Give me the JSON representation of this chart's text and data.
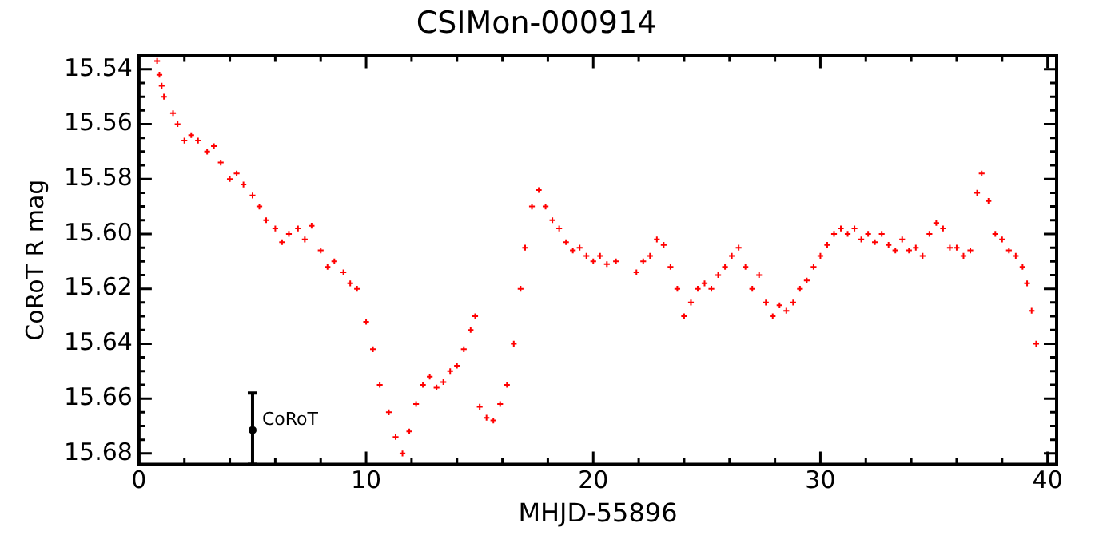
{
  "chart_data": {
    "type": "scatter",
    "title": "CSIMon-000914",
    "xlabel": "MHJD-55896",
    "ylabel": "CoRoT R mag",
    "xlim": [
      0,
      40.4
    ],
    "ylim": [
      15.684,
      15.535
    ],
    "xticks": [
      0,
      {
        "value": 2,
        "label": null
      },
      {
        "value": 4,
        "label": null
      },
      {
        "value": 6,
        "label": null
      },
      {
        "value": 8,
        "label": null
      },
      10,
      {
        "value": 12,
        "label": null
      },
      {
        "value": 14,
        "label": null
      },
      {
        "value": 16,
        "label": null
      },
      {
        "value": 18,
        "label": null
      },
      20,
      {
        "value": 22,
        "label": null
      },
      {
        "value": 24,
        "label": null
      },
      {
        "value": 26,
        "label": null
      },
      {
        "value": 28,
        "label": null
      },
      30,
      {
        "value": 32,
        "label": null
      },
      {
        "value": 34,
        "label": null
      },
      {
        "value": 36,
        "label": null
      },
      {
        "value": 38,
        "label": null
      },
      40
    ],
    "yticks": [
      {
        "value": 15.54,
        "label": "15.54"
      },
      {
        "value": 15.545,
        "label": null
      },
      {
        "value": 15.55,
        "label": null
      },
      {
        "value": 15.555,
        "label": null
      },
      {
        "value": 15.56,
        "label": "15.56"
      },
      {
        "value": 15.565,
        "label": null
      },
      {
        "value": 15.57,
        "label": null
      },
      {
        "value": 15.575,
        "label": null
      },
      {
        "value": 15.58,
        "label": "15.58"
      },
      {
        "value": 15.585,
        "label": null
      },
      {
        "value": 15.59,
        "label": null
      },
      {
        "value": 15.595,
        "label": null
      },
      {
        "value": 15.6,
        "label": "15.60"
      },
      {
        "value": 15.605,
        "label": null
      },
      {
        "value": 15.61,
        "label": null
      },
      {
        "value": 15.615,
        "label": null
      },
      {
        "value": 15.62,
        "label": "15.62"
      },
      {
        "value": 15.625,
        "label": null
      },
      {
        "value": 15.63,
        "label": null
      },
      {
        "value": 15.635,
        "label": null
      },
      {
        "value": 15.64,
        "label": "15.64"
      },
      {
        "value": 15.645,
        "label": null
      },
      {
        "value": 15.65,
        "label": null
      },
      {
        "value": 15.655,
        "label": null
      },
      {
        "value": 15.66,
        "label": "15.66"
      },
      {
        "value": 15.665,
        "label": null
      },
      {
        "value": 15.67,
        "label": null
      },
      {
        "value": 15.675,
        "label": null
      },
      {
        "value": 15.68,
        "label": "15.68"
      }
    ],
    "marker": "cross",
    "legend": false,
    "series": [
      {
        "color": "#ff0000",
        "x": [
          0.8,
          0.9,
          1.0,
          1.1,
          1.5,
          1.7,
          2.0,
          2.3,
          2.6,
          3.0,
          3.3,
          3.6,
          4.0,
          4.3,
          4.6,
          5.0,
          5.3,
          5.6,
          6.0,
          6.3,
          6.6,
          7.0,
          7.3,
          7.6,
          8.0,
          8.3,
          8.6,
          9.0,
          9.3,
          9.6,
          10.0,
          10.3,
          10.6,
          11.0,
          11.3,
          11.6,
          11.9,
          12.2,
          12.5,
          12.8,
          13.1,
          13.4,
          13.7,
          14.0,
          14.3,
          14.6,
          14.8,
          15.0,
          15.3,
          15.6,
          15.9,
          16.2,
          16.5,
          16.8,
          17.0,
          17.3,
          17.6,
          17.9,
          18.2,
          18.5,
          18.8,
          19.1,
          19.4,
          19.7,
          20.0,
          20.3,
          20.6,
          21.0,
          21.9,
          22.2,
          22.5,
          22.8,
          23.1,
          23.4,
          23.7,
          24.0,
          24.3,
          24.6,
          24.9,
          25.2,
          25.5,
          25.8,
          26.1,
          26.4,
          26.7,
          27.0,
          27.3,
          27.6,
          27.9,
          28.2,
          28.5,
          28.8,
          29.1,
          29.4,
          29.7,
          30.0,
          30.3,
          30.6,
          30.9,
          31.2,
          31.5,
          31.8,
          32.1,
          32.4,
          32.7,
          33.0,
          33.3,
          33.6,
          33.9,
          34.2,
          34.5,
          34.8,
          35.1,
          35.4,
          35.7,
          36.0,
          36.3,
          36.6,
          36.9,
          37.1,
          37.4,
          37.7,
          38.0,
          38.3,
          38.6,
          38.9,
          39.1,
          39.3,
          39.5
        ],
        "values": [
          15.537,
          15.542,
          15.546,
          15.55,
          15.556,
          15.56,
          15.566,
          15.564,
          15.566,
          15.57,
          15.568,
          15.574,
          15.58,
          15.578,
          15.582,
          15.586,
          15.59,
          15.595,
          15.598,
          15.603,
          15.6,
          15.598,
          15.602,
          15.597,
          15.606,
          15.612,
          15.61,
          15.614,
          15.618,
          15.62,
          15.632,
          15.642,
          15.655,
          15.665,
          15.674,
          15.68,
          15.672,
          15.662,
          15.655,
          15.652,
          15.656,
          15.654,
          15.65,
          15.648,
          15.642,
          15.635,
          15.63,
          15.663,
          15.667,
          15.668,
          15.662,
          15.655,
          15.64,
          15.62,
          15.605,
          15.59,
          15.584,
          15.59,
          15.595,
          15.598,
          15.603,
          15.606,
          15.605,
          15.608,
          15.61,
          15.608,
          15.611,
          15.61,
          15.614,
          15.61,
          15.608,
          15.602,
          15.604,
          15.612,
          15.62,
          15.63,
          15.625,
          15.62,
          15.618,
          15.62,
          15.615,
          15.612,
          15.608,
          15.605,
          15.612,
          15.62,
          15.615,
          15.625,
          15.63,
          15.626,
          15.628,
          15.625,
          15.62,
          15.617,
          15.612,
          15.608,
          15.604,
          15.6,
          15.598,
          15.6,
          15.598,
          15.602,
          15.6,
          15.603,
          15.6,
          15.604,
          15.606,
          15.602,
          15.606,
          15.605,
          15.608,
          15.6,
          15.596,
          15.598,
          15.605,
          15.605,
          15.608,
          15.606,
          15.585,
          15.578,
          15.588,
          15.6,
          15.602,
          15.606,
          15.608,
          15.612,
          15.618,
          15.628,
          15.64
        ]
      },
      {
        "name": "CoRoT",
        "marker": "circle",
        "color": "#000000",
        "x": [
          5
        ],
        "values": [
          15.6715
        ],
        "errors": [
          [
            15.658,
            15.684
          ]
        ]
      }
    ]
  }
}
